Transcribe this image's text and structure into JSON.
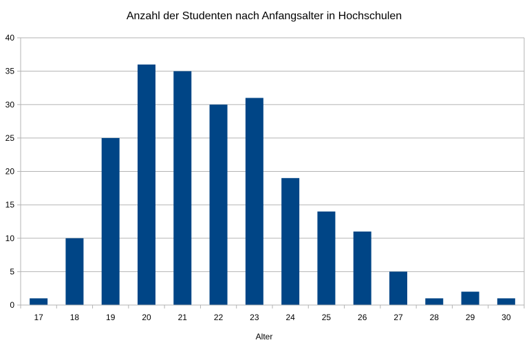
{
  "chart_data": {
    "type": "bar",
    "title": "Anzahl der Studenten nach Anfangsalter in Hochschulen",
    "xlabel": "Alter",
    "ylabel": "",
    "categories": [
      "17",
      "18",
      "19",
      "20",
      "21",
      "22",
      "23",
      "24",
      "25",
      "26",
      "27",
      "28",
      "29",
      "30"
    ],
    "values": [
      1,
      10,
      25,
      36,
      35,
      30,
      31,
      19,
      14,
      11,
      5,
      1,
      2,
      1
    ],
    "ylim": [
      0,
      40
    ],
    "yticks": [
      0,
      5,
      10,
      15,
      20,
      25,
      30,
      35,
      40
    ],
    "grid": true,
    "legend": "none",
    "bar_color": "#004586"
  }
}
